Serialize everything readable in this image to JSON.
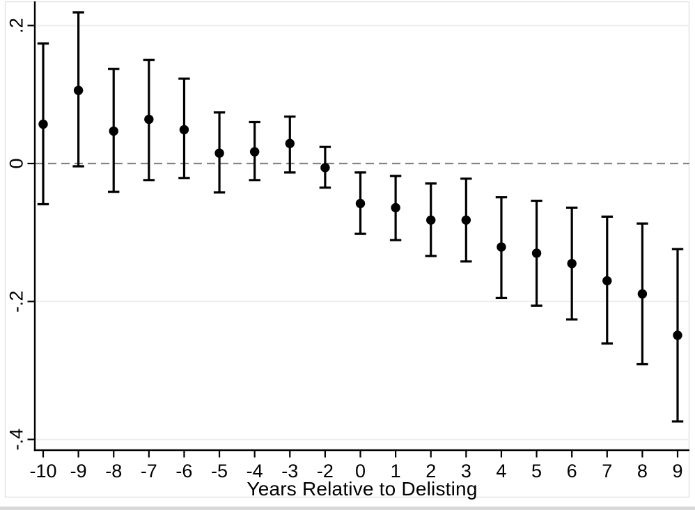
{
  "figure": {
    "background": "#ffffff",
    "border_color": "#dae4e6",
    "bottom_edge_color": "#d9d9d9"
  },
  "chart_data": {
    "type": "scatter",
    "subtype": "coefficient-errorbar-plot",
    "title": "",
    "xlabel": "Years Relative to Delisting",
    "ylabel": "",
    "legend": "none",
    "ylim": [
      -0.415,
      0.235
    ],
    "grid": {
      "color": "#e7f0ee",
      "values": [
        0.2,
        -0.2,
        -0.4
      ]
    },
    "reference_line": {
      "y": 0,
      "style": "dashed",
      "color": "#848484"
    },
    "marker_color": "#000000",
    "y_axis": {
      "tick_labels": [
        ".2",
        "0",
        "-.2",
        "-.4"
      ],
      "tick_values": [
        0.2,
        0,
        -0.2,
        -0.4
      ],
      "label_rotation_deg": -90
    },
    "categories": [
      "-10",
      "-9",
      "-8",
      "-7",
      "-6",
      "-5",
      "-4",
      "-3",
      "-2",
      "0",
      "1",
      "2",
      "3",
      "4",
      "5",
      "6",
      "7",
      "8",
      "9"
    ],
    "points": [
      {
        "x": "-10",
        "estimate": 0.057,
        "ci_low": -0.059,
        "ci_high": 0.174
      },
      {
        "x": "-9",
        "estimate": 0.106,
        "ci_low": -0.004,
        "ci_high": 0.219
      },
      {
        "x": "-8",
        "estimate": 0.047,
        "ci_low": -0.041,
        "ci_high": 0.137
      },
      {
        "x": "-7",
        "estimate": 0.064,
        "ci_low": -0.024,
        "ci_high": 0.15
      },
      {
        "x": "-6",
        "estimate": 0.049,
        "ci_low": -0.021,
        "ci_high": 0.123
      },
      {
        "x": "-5",
        "estimate": 0.015,
        "ci_low": -0.042,
        "ci_high": 0.074
      },
      {
        "x": "-4",
        "estimate": 0.017,
        "ci_low": -0.024,
        "ci_high": 0.06
      },
      {
        "x": "-3",
        "estimate": 0.029,
        "ci_low": -0.013,
        "ci_high": 0.068
      },
      {
        "x": "-2",
        "estimate": -0.006,
        "ci_low": -0.035,
        "ci_high": 0.024
      },
      {
        "x": "0",
        "estimate": -0.058,
        "ci_low": -0.102,
        "ci_high": -0.013
      },
      {
        "x": "1",
        "estimate": -0.064,
        "ci_low": -0.111,
        "ci_high": -0.018
      },
      {
        "x": "2",
        "estimate": -0.082,
        "ci_low": -0.134,
        "ci_high": -0.029
      },
      {
        "x": "3",
        "estimate": -0.082,
        "ci_low": -0.142,
        "ci_high": -0.022
      },
      {
        "x": "4",
        "estimate": -0.121,
        "ci_low": -0.195,
        "ci_high": -0.049
      },
      {
        "x": "5",
        "estimate": -0.13,
        "ci_low": -0.206,
        "ci_high": -0.054
      },
      {
        "x": "6",
        "estimate": -0.145,
        "ci_low": -0.226,
        "ci_high": -0.064
      },
      {
        "x": "7",
        "estimate": -0.17,
        "ci_low": -0.261,
        "ci_high": -0.077
      },
      {
        "x": "8",
        "estimate": -0.189,
        "ci_low": -0.291,
        "ci_high": -0.087
      },
      {
        "x": "9",
        "estimate": -0.249,
        "ci_low": -0.374,
        "ci_high": -0.124
      }
    ]
  }
}
